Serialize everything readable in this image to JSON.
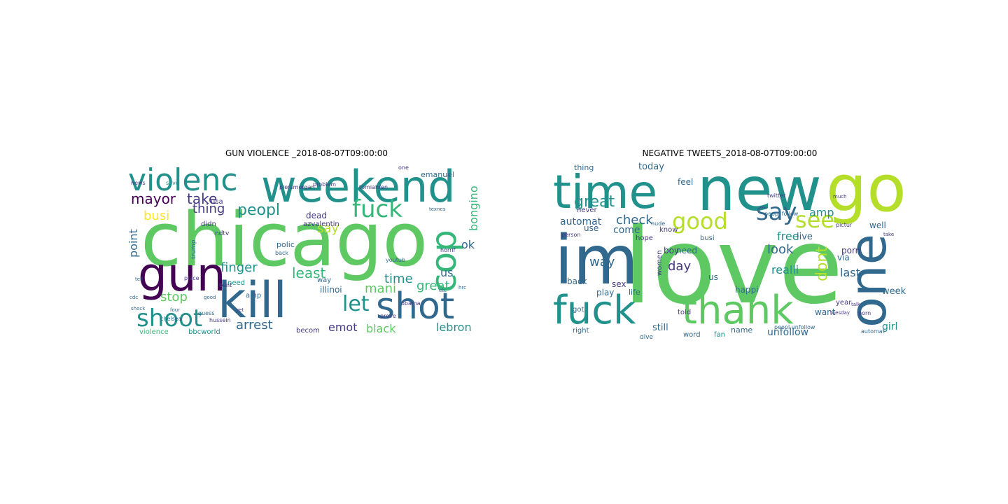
{
  "figure": {
    "panels": [
      {
        "title": "GUN VIOLENCE _2018-08-07T09:00:00",
        "words": [
          {
            "text": "chicago",
            "color": "#5ec962"
          },
          {
            "text": "weekend",
            "color": "#21918c"
          },
          {
            "text": "gun",
            "color": "#440154"
          },
          {
            "text": "kill",
            "color": "#31688e"
          },
          {
            "text": "shot",
            "color": "#31688e"
          },
          {
            "text": "violenc",
            "color": "#21918c"
          },
          {
            "text": "fuck",
            "color": "#35b779"
          },
          {
            "text": "cop",
            "color": "#35b779"
          },
          {
            "text": "shoot",
            "color": "#21918c"
          },
          {
            "text": "mayor",
            "color": "#440154"
          },
          {
            "text": "take",
            "color": "#443983"
          },
          {
            "text": "peopl",
            "color": "#21918c"
          },
          {
            "text": "thing",
            "color": "#443983"
          },
          {
            "text": "say",
            "color": "#b5de2b"
          },
          {
            "text": "busi",
            "color": "#fde725"
          },
          {
            "text": "point",
            "color": "#31688e"
          },
          {
            "text": "stop",
            "color": "#5ec962"
          },
          {
            "text": "finger",
            "color": "#21918c"
          },
          {
            "text": "least",
            "color": "#35b779"
          },
          {
            "text": "time",
            "color": "#21918c"
          },
          {
            "text": "mani",
            "color": "#5ec962"
          },
          {
            "text": "let",
            "color": "#21918c"
          },
          {
            "text": "arrest",
            "color": "#31688e"
          },
          {
            "text": "emot",
            "color": "#443983"
          },
          {
            "text": "black",
            "color": "#5ec962"
          },
          {
            "text": "lebron",
            "color": "#21918c"
          },
          {
            "text": "great",
            "color": "#35b779"
          },
          {
            "text": "us",
            "color": "#31688e"
          },
          {
            "text": "ok",
            "color": "#31688e"
          },
          {
            "text": "bongino",
            "color": "#35b779"
          },
          {
            "text": "dead",
            "color": "#443983"
          },
          {
            "text": "azvalentin",
            "color": "#443983"
          },
          {
            "text": "illinoi",
            "color": "#31688e"
          },
          {
            "text": "polic",
            "color": "#31688e"
          },
          {
            "text": "didn",
            "color": "#443983"
          },
          {
            "text": "usa",
            "color": "#443983"
          },
          {
            "text": "emanuel",
            "color": "#31688e"
          },
          {
            "text": "ndtv",
            "color": "#443983"
          },
          {
            "text": "violence",
            "color": "#35b779"
          },
          {
            "text": "bbcworld",
            "color": "#21918c"
          },
          {
            "text": "becom",
            "color": "#443983"
          },
          {
            "text": "need",
            "color": "#21918c"
          },
          {
            "text": "amp",
            "color": "#31688e"
          },
          {
            "text": "way",
            "color": "#31688e"
          },
          {
            "text": "piersmorgan",
            "color": "#443983"
          },
          {
            "text": "trump",
            "color": "#31688e"
          },
          {
            "text": "prove",
            "color": "#443983"
          },
          {
            "text": "youtub",
            "color": "#31688e"
          },
          {
            "text": "one",
            "color": "#443983"
          },
          {
            "text": "save",
            "color": "#21918c"
          },
          {
            "text": "news",
            "color": "#443983"
          },
          {
            "text": "chelsea",
            "color": "#31688e"
          },
          {
            "text": "hussein",
            "color": "#443983"
          },
          {
            "text": "obama",
            "color": "#443983"
          },
          {
            "text": "guess",
            "color": "#31688e"
          },
          {
            "text": "horrif",
            "color": "#443983"
          },
          {
            "text": "problem",
            "color": "#443983"
          },
          {
            "text": "tomiahren",
            "color": "#443983"
          },
          {
            "text": "bent",
            "color": "#443983"
          },
          {
            "text": "place",
            "color": "#443983"
          },
          {
            "text": "back",
            "color": "#31688e"
          },
          {
            "text": "shock",
            "color": "#31688e"
          },
          {
            "text": "four",
            "color": "#31688e"
          },
          {
            "text": "yet",
            "color": "#443983"
          },
          {
            "text": "good",
            "color": "#31688e"
          },
          {
            "text": "cdc",
            "color": "#31688e"
          },
          {
            "text": "tell",
            "color": "#31688e"
          },
          {
            "text": "etc",
            "color": "#31688e"
          },
          {
            "text": "hrc",
            "color": "#31688e"
          },
          {
            "text": "texnes",
            "color": "#31688e"
          }
        ]
      },
      {
        "title": "NEGATIVE TWEETS_2018-08-07T09:00:00",
        "words": [
          {
            "text": "love",
            "color": "#5ec962"
          },
          {
            "text": "im",
            "color": "#31688e"
          },
          {
            "text": "new",
            "color": "#21918c"
          },
          {
            "text": "go",
            "color": "#b5de2b"
          },
          {
            "text": "time",
            "color": "#21918c"
          },
          {
            "text": "one",
            "color": "#31688e"
          },
          {
            "text": "fuck",
            "color": "#21918c"
          },
          {
            "text": "thank",
            "color": "#5ec962"
          },
          {
            "text": "say",
            "color": "#31688e"
          },
          {
            "text": "good",
            "color": "#b5de2b"
          },
          {
            "text": "see",
            "color": "#b5de2b"
          },
          {
            "text": "dont",
            "color": "#b5de2b"
          },
          {
            "text": "great",
            "color": "#21918c"
          },
          {
            "text": "automat",
            "color": "#31688e"
          },
          {
            "text": "check",
            "color": "#31688e"
          },
          {
            "text": "look",
            "color": "#31688e"
          },
          {
            "text": "free",
            "color": "#21918c"
          },
          {
            "text": "amp",
            "color": "#21918c"
          },
          {
            "text": "day",
            "color": "#443983"
          },
          {
            "text": "way",
            "color": "#31688e"
          },
          {
            "text": "come",
            "color": "#31688e"
          },
          {
            "text": "need",
            "color": "#31688e"
          },
          {
            "text": "live",
            "color": "#31688e"
          },
          {
            "text": "realli",
            "color": "#21918c"
          },
          {
            "text": "last",
            "color": "#31688e"
          },
          {
            "text": "week",
            "color": "#31688e"
          },
          {
            "text": "unfollow",
            "color": "#31688e"
          },
          {
            "text": "girl",
            "color": "#21918c"
          },
          {
            "text": "today",
            "color": "#31688e"
          },
          {
            "text": "thing",
            "color": "#31688e"
          },
          {
            "text": "feel",
            "color": "#31688e"
          },
          {
            "text": "never",
            "color": "#443983"
          },
          {
            "text": "busi",
            "color": "#31688e"
          },
          {
            "text": "use",
            "color": "#31688e"
          },
          {
            "text": "hope",
            "color": "#443983"
          },
          {
            "text": "boy",
            "color": "#443983"
          },
          {
            "text": "back",
            "color": "#31688e"
          },
          {
            "text": "sex",
            "color": "#443983"
          },
          {
            "text": "play",
            "color": "#31688e"
          },
          {
            "text": "life",
            "color": "#31688e"
          },
          {
            "text": "happi",
            "color": "#31688e"
          },
          {
            "text": "got",
            "color": "#31688e"
          },
          {
            "text": "right",
            "color": "#31688e"
          },
          {
            "text": "still",
            "color": "#31688e"
          },
          {
            "text": "give",
            "color": "#31688e"
          },
          {
            "text": "told",
            "color": "#443983"
          },
          {
            "text": "name",
            "color": "#31688e"
          },
          {
            "text": "fan",
            "color": "#21918c"
          },
          {
            "text": "want",
            "color": "#31688e"
          },
          {
            "text": "year",
            "color": "#443983"
          },
          {
            "text": "porn",
            "color": "#443983"
          },
          {
            "text": "well",
            "color": "#31688e"
          },
          {
            "text": "via",
            "color": "#31688e"
          },
          {
            "text": "us",
            "color": "#31688e"
          },
          {
            "text": "alway",
            "color": "#31688e"
          },
          {
            "text": "women",
            "color": "#443983"
          },
          {
            "text": "know",
            "color": "#443983"
          },
          {
            "text": "word",
            "color": "#31688e"
          },
          {
            "text": "nude",
            "color": "#31688e"
          },
          {
            "text": "person",
            "color": "#443983"
          },
          {
            "text": "peopl unfollow",
            "color": "#31688e"
          },
          {
            "text": "peopl follow",
            "color": "#31688e"
          },
          {
            "text": "porn",
            "color": "#443983"
          },
          {
            "text": "automat",
            "color": "#31688e"
          },
          {
            "text": "twitter",
            "color": "#443983"
          },
          {
            "text": "much",
            "color": "#443983"
          },
          {
            "text": "pictur",
            "color": "#443983"
          },
          {
            "text": "tuesday",
            "color": "#443983"
          },
          {
            "text": "talk",
            "color": "#443983"
          },
          {
            "text": "take",
            "color": "#443983"
          }
        ]
      }
    ]
  }
}
